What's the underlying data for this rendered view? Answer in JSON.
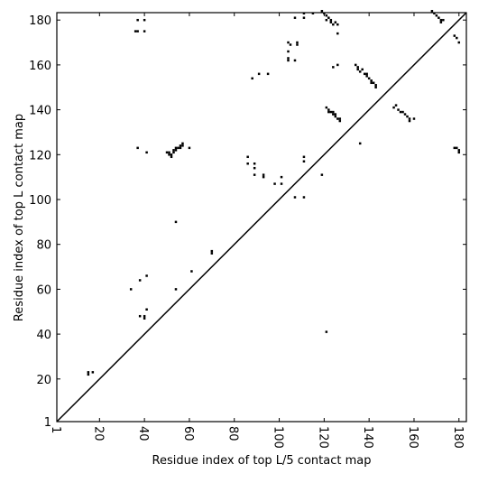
{
  "chart_data": {
    "type": "scatter",
    "xlabel": "Residue index of top L/5 contact map",
    "ylabel": "Residue index of top L contact map",
    "xlim": [
      1,
      183.3
    ],
    "ylim": [
      1,
      183.3
    ],
    "xticks": [
      1,
      20,
      40,
      60,
      80,
      100,
      120,
      140,
      160,
      180
    ],
    "yticks": [
      1,
      20,
      40,
      60,
      80,
      100,
      120,
      140,
      160,
      180
    ],
    "color": "#000000",
    "x": [
      37,
      40,
      36,
      37,
      40,
      15,
      15,
      17,
      34,
      38,
      41,
      38,
      40,
      40,
      41,
      54,
      54,
      61,
      70,
      70,
      50,
      51,
      51,
      52,
      52,
      53,
      53,
      54,
      54,
      55,
      56,
      56,
      57,
      57,
      60,
      37,
      41,
      86,
      86,
      89,
      89,
      89,
      93,
      93,
      98,
      101,
      101,
      107,
      111,
      111,
      111,
      119,
      121,
      88,
      91,
      95,
      104,
      105,
      108,
      108,
      104,
      104,
      104,
      107,
      107,
      111,
      111,
      115,
      119,
      120,
      121,
      122,
      121,
      123,
      123,
      124,
      125,
      126,
      126,
      124,
      126,
      134,
      135,
      135,
      136,
      137,
      138,
      139,
      139,
      140,
      141,
      141,
      142,
      143,
      143,
      136,
      121,
      122,
      122,
      123,
      124,
      124,
      125,
      125,
      126,
      127,
      127,
      151,
      152,
      153,
      154,
      155,
      156,
      157,
      158,
      158,
      160,
      168,
      169,
      170,
      171,
      172,
      172,
      173,
      178,
      179,
      180,
      178,
      179,
      180,
      180
    ],
    "y": [
      180,
      180,
      175,
      175,
      175,
      22,
      23,
      23,
      60,
      64,
      66,
      48,
      48,
      47,
      51,
      60,
      90,
      68,
      77,
      76,
      121,
      121,
      120,
      119,
      120,
      121,
      122,
      122,
      123,
      123,
      123,
      124,
      124,
      125,
      123,
      123,
      121,
      119,
      116,
      116,
      114,
      111,
      111,
      110,
      107,
      107,
      110,
      101,
      101,
      117,
      119,
      111,
      41,
      154,
      156,
      156,
      170,
      169,
      170,
      169,
      166,
      163,
      162,
      162,
      181,
      181,
      183,
      183,
      184,
      183,
      182,
      181,
      180,
      180,
      179,
      178,
      179,
      178,
      174,
      159,
      160,
      160,
      159,
      158,
      157,
      158,
      156,
      156,
      155,
      154,
      153,
      152,
      152,
      151,
      150,
      125,
      141,
      140,
      139,
      139,
      138,
      139,
      138,
      137,
      136,
      136,
      135,
      141,
      142,
      140,
      139,
      139,
      138,
      137,
      136,
      135,
      136,
      184,
      183,
      182,
      181,
      180,
      179,
      180,
      173,
      172,
      170,
      123,
      123,
      122,
      121
    ]
  }
}
